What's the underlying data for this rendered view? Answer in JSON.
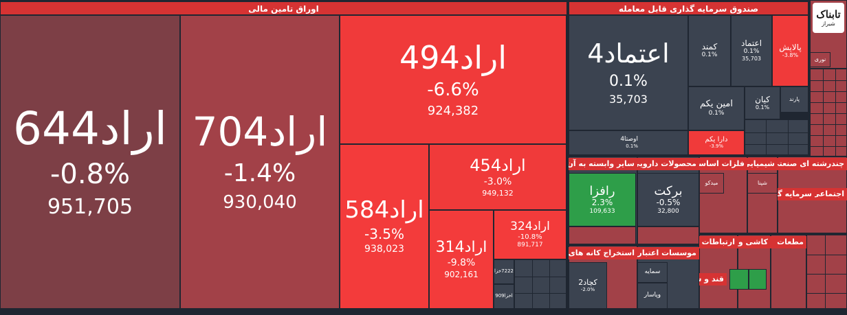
{
  "sections": {
    "bonds": {
      "title": "اوراق تامین مالی"
    },
    "etf": {
      "title": "صندوق سرمایه گذاری قابل معامله"
    }
  },
  "bonds": {
    "arad644": {
      "name": "اراد644",
      "pct": "-0.8%",
      "vol": "951,705",
      "color": "#7d3f46"
    },
    "arad704": {
      "name": "اراد704",
      "pct": "-1.4%",
      "vol": "930,040",
      "color": "#a24148"
    },
    "arad494": {
      "name": "اراد494",
      "pct": "-6.6%",
      "vol": "924,382",
      "color": "#f03a3a"
    },
    "arad584": {
      "name": "اراد584",
      "pct": "-3.5%",
      "vol": "938,023",
      "color": "#f33b3b"
    },
    "arad454": {
      "name": "اراد454",
      "pct": "-3.0%",
      "vol": "949,132",
      "color": "#f03a3a"
    },
    "arad314": {
      "name": "اراد314",
      "pct": "-9.8%",
      "vol": "902,161",
      "color": "#f33b3b"
    },
    "arad324": {
      "name": "اراد324",
      "pct": "-10.8%",
      "vol": "891,717",
      "color": "#f33b3b"
    },
    "khazar7222": {
      "name": "7222خزا"
    },
    "akhza909": {
      "name": "اخزا909"
    }
  },
  "etf": {
    "etemad4": {
      "name": "اعتماد4",
      "pct": "0.1%",
      "vol": "35,703"
    },
    "kamand": {
      "name": "کمند",
      "pct": "0.1%"
    },
    "etemad": {
      "name": "اعتماد",
      "pct": "0.1%",
      "vol": "35,703"
    },
    "palayesh": {
      "name": "پالایش",
      "pct": "-3.8%"
    },
    "amin_yekom": {
      "name": "امین یکم",
      "pct": "0.1%"
    },
    "kian": {
      "name": "کیان",
      "pct": "0.1%"
    },
    "parand": {
      "name": "پارند"
    },
    "ousta4": {
      "name": "اوصتا4",
      "pct": "0.1%"
    },
    "dara_yekom": {
      "name": "دارا یکم",
      "pct": "-3.9%"
    },
    "nouri": {
      "name": "نوری"
    }
  },
  "industries": {
    "pharma": {
      "title": "محصولات دارویی",
      "barkat": {
        "name": "برکت",
        "pct": "-0.5%",
        "vol": "32,800"
      }
    },
    "affiliated": {
      "title": "سایر وابسته به آن",
      "rafza": {
        "name": "رافزا",
        "pct": "2.3%",
        "vol": "109,633"
      }
    },
    "basic_metals": {
      "title": "فلزات اساسی",
      "midko": {
        "name": "میدکو"
      }
    },
    "chem": {
      "title": "شیمیایی",
      "shina": {
        "name": "شپنا"
      }
    },
    "industrial_multi": {
      "title": "چندرشته ای صنعتی"
    },
    "investments": {
      "title": "سرمایه گذاریها"
    },
    "retail": {
      "title": "اجتماعی"
    },
    "metal_ore": {
      "title": "استخراج کانه های فلزی",
      "kechad2": {
        "name": "کچاد2",
        "pct": "-2.0%"
      }
    },
    "credit": {
      "title": "موسسات اعتباری",
      "semaye": {
        "name": "سمایه"
      },
      "vapasar": {
        "name": "وپاسار"
      }
    },
    "tiles": {
      "title": "کاشی و کچ"
    },
    "communications": {
      "title": "ارتباطات"
    },
    "sugar": {
      "title": "قند و شکر"
    },
    "banks": {
      "title": "مطعات"
    }
  },
  "logo": {
    "line1": "تابناک",
    "line2": "شیراز"
  },
  "colors": {
    "red": "#f03a3a",
    "dark_red": "#a24148",
    "maroon": "#7d3f46",
    "slate": "#3b4350",
    "green": "#2e9e49"
  }
}
